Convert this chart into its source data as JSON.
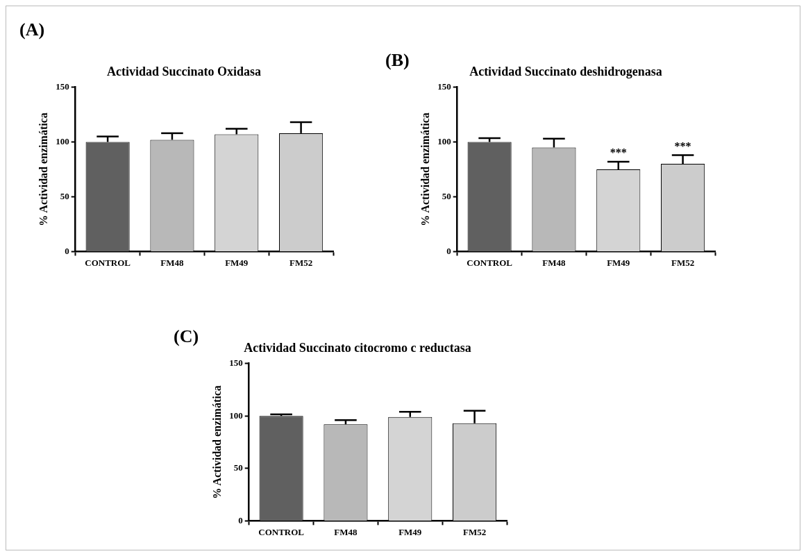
{
  "chart_data": [
    {
      "type": "bar",
      "title": "Actividad Succinato Oxidasa",
      "ylabel": "% Actividad enzimática",
      "annotations": [
        "(A)"
      ],
      "categories": [
        "CONTROL",
        "FM48",
        "FM49",
        "FM52"
      ],
      "values": [
        100,
        102,
        107,
        108
      ],
      "errors": [
        [
          100,
          105
        ],
        [
          102,
          108
        ],
        [
          107,
          112
        ],
        [
          108,
          118
        ]
      ],
      "colors": [
        "#606060",
        "#b8b8b8",
        "#d4d4d4",
        "#cccccc"
      ],
      "ylim": [
        0,
        150
      ],
      "yticks": [
        0,
        50,
        100,
        150
      ],
      "grid": false,
      "legend": false
    },
    {
      "type": "bar",
      "title": "Actividad Succinato deshidrogenasa",
      "ylabel": "% Actividad enzimática",
      "annotations": [
        "(B)",
        {
          "text": "***",
          "x": "FM49",
          "y": 82
        },
        {
          "text": "***",
          "x": "FM52",
          "y": 88
        }
      ],
      "categories": [
        "CONTROL",
        "FM48",
        "FM49",
        "FM52"
      ],
      "values": [
        100,
        95,
        75,
        80
      ],
      "errors": [
        [
          100,
          103.5
        ],
        [
          95,
          103
        ],
        [
          75,
          82
        ],
        [
          80,
          88
        ]
      ],
      "colors": [
        "#606060",
        "#b8b8b8",
        "#d4d4d4",
        "#cccccc"
      ],
      "ylim": [
        0,
        150
      ],
      "yticks": [
        0,
        50,
        100,
        150
      ],
      "grid": false,
      "legend": false
    },
    {
      "type": "bar",
      "title": "Actividad Succinato citocromo c reductasa",
      "ylabel": "% Actividad enzimática",
      "annotations": [
        "(C)"
      ],
      "categories": [
        "CONTROL",
        "FM48",
        "FM49",
        "FM52"
      ],
      "values": [
        100,
        92,
        99,
        93
      ],
      "errors": [
        [
          100,
          101.5
        ],
        [
          92,
          96
        ],
        [
          99,
          104
        ],
        [
          93,
          105
        ]
      ],
      "colors": [
        "#606060",
        "#b8b8b8",
        "#d4d4d4",
        "#cccccc"
      ],
      "ylim": [
        0,
        150
      ],
      "yticks": [
        0,
        50,
        100,
        150
      ],
      "grid": false,
      "legend": false
    }
  ]
}
